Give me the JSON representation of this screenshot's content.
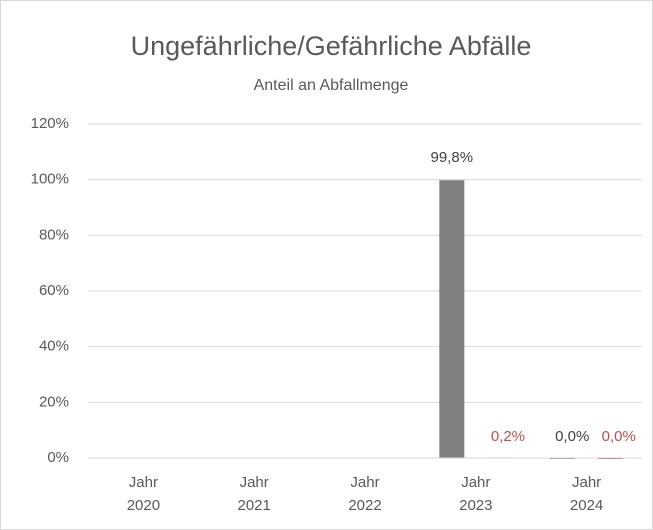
{
  "chart_data": {
    "type": "bar",
    "title": "Ungefährliche/Gefährliche Abfälle",
    "subtitle": "Anteil an Abfallmenge",
    "categories": [
      "Jahr\n2020",
      "Jahr\n2021",
      "Jahr\n2022",
      "Jahr\n2023",
      "Jahr\n2024"
    ],
    "series": [
      {
        "color": "#808080",
        "label_color": "#404040",
        "values": [
          null,
          null,
          null,
          99.8,
          0.0
        ],
        "value_labels": [
          null,
          null,
          null,
          "99,8%",
          "0,0%"
        ]
      },
      {
        "color": "#c0504d",
        "label_color": "#c0504d",
        "values": [
          null,
          null,
          null,
          0.2,
          0.0
        ],
        "value_labels": [
          null,
          null,
          null,
          "0,2%",
          "0,0%"
        ]
      }
    ],
    "ylim": [
      0,
      120
    ],
    "yticks": [
      {
        "value": 0,
        "label": "0%"
      },
      {
        "value": 20,
        "label": "20%"
      },
      {
        "value": 40,
        "label": "40%"
      },
      {
        "value": 60,
        "label": "60%"
      },
      {
        "value": 80,
        "label": "80%"
      },
      {
        "value": 100,
        "label": "100%"
      },
      {
        "value": 120,
        "label": "120%"
      }
    ],
    "grid": true
  }
}
